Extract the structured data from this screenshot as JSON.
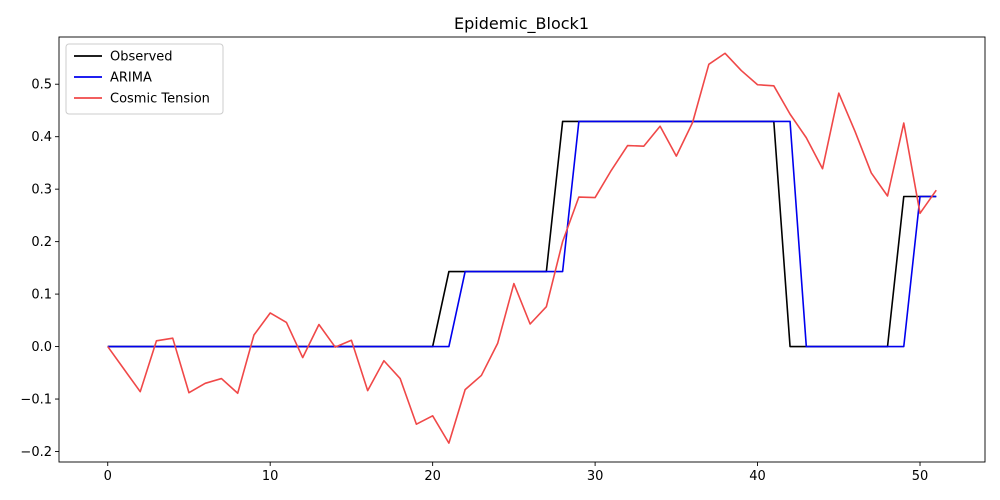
{
  "chart_data": {
    "type": "line",
    "title": "Epidemic_Block1",
    "xlabel": "",
    "ylabel": "",
    "xlim": [
      -3,
      54
    ],
    "ylim": [
      -0.22,
      0.59
    ],
    "xticks": [
      0,
      10,
      20,
      30,
      40,
      50
    ],
    "yticks": [
      -0.2,
      -0.1,
      0.0,
      0.1,
      0.2,
      0.3,
      0.4,
      0.5
    ],
    "ytick_labels": [
      "−0.2",
      "−0.1",
      "0.0",
      "0.1",
      "0.2",
      "0.3",
      "0.4",
      "0.5"
    ],
    "xtick_labels": [
      "0",
      "10",
      "20",
      "30",
      "40",
      "50"
    ],
    "grid": false,
    "legend_position": "top-left",
    "x": [
      0,
      1,
      2,
      3,
      4,
      5,
      6,
      7,
      8,
      9,
      10,
      11,
      12,
      13,
      14,
      15,
      16,
      17,
      18,
      19,
      20,
      21,
      22,
      23,
      24,
      25,
      26,
      27,
      28,
      29,
      30,
      31,
      32,
      33,
      34,
      35,
      36,
      37,
      38,
      39,
      40,
      41,
      42,
      43,
      44,
      45,
      46,
      47,
      48,
      49,
      50,
      51
    ],
    "series": [
      {
        "name": "Observed",
        "color": "#000000",
        "values": [
          0,
          0,
          0,
          0,
          0,
          0,
          0,
          0,
          0,
          0,
          0,
          0,
          0,
          0,
          0,
          0,
          0,
          0,
          0,
          0,
          0,
          0.143,
          0.143,
          0.143,
          0.143,
          0.143,
          0.143,
          0.143,
          0.429,
          0.429,
          0.429,
          0.429,
          0.429,
          0.429,
          0.429,
          0.429,
          0.429,
          0.429,
          0.429,
          0.429,
          0.429,
          0.429,
          0,
          0,
          0,
          0,
          0,
          0,
          0,
          0.286,
          0.286,
          0.286
        ]
      },
      {
        "name": "ARIMA",
        "color": "#0000ee",
        "values": [
          0,
          0,
          0,
          0,
          0,
          0,
          0,
          0,
          0,
          0,
          0,
          0,
          0,
          0,
          0,
          0,
          0,
          0,
          0,
          0,
          0,
          0,
          0.143,
          0.143,
          0.143,
          0.143,
          0.143,
          0.143,
          0.143,
          0.429,
          0.429,
          0.429,
          0.429,
          0.429,
          0.429,
          0.429,
          0.429,
          0.429,
          0.429,
          0.429,
          0.429,
          0.429,
          0.429,
          0,
          0,
          0,
          0,
          0,
          0,
          0,
          0.286,
          0.286
        ]
      },
      {
        "name": "Cosmic Tension",
        "color": "#f04848",
        "values": [
          0,
          -0.043,
          -0.086,
          0.011,
          0.016,
          -0.088,
          -0.07,
          -0.061,
          -0.089,
          0.022,
          0.064,
          0.046,
          -0.021,
          0.042,
          -0.001,
          0.012,
          -0.084,
          -0.027,
          -0.061,
          -0.148,
          -0.132,
          -0.184,
          -0.082,
          -0.055,
          0.006,
          0.12,
          0.043,
          0.076,
          0.2,
          0.285,
          0.284,
          0.336,
          0.383,
          0.382,
          0.42,
          0.363,
          0.427,
          0.538,
          0.559,
          0.526,
          0.499,
          0.497,
          0.443,
          0.398,
          0.339,
          0.483,
          0.41,
          0.331,
          0.287,
          0.426,
          0.254,
          0.298
        ]
      }
    ]
  }
}
